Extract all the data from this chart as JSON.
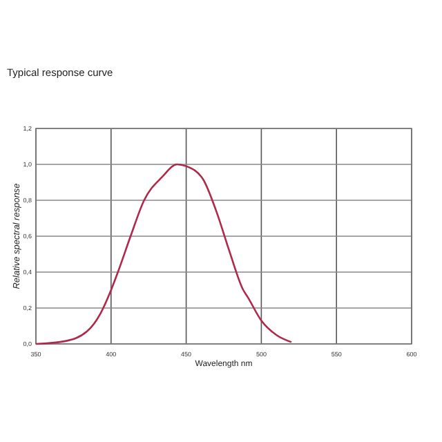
{
  "chart_data": {
    "type": "line",
    "title": "Typical response curve",
    "xlabel": "Wavelength nm",
    "ylabel": "Relative spectral response",
    "x": [
      350,
      369,
      384,
      393,
      400,
      405,
      413,
      422,
      434,
      444,
      450,
      461,
      470,
      479,
      488,
      491,
      500,
      510,
      520
    ],
    "series": [
      {
        "color": "#b0284a",
        "values": [
          0.0,
          0.015,
          0.07,
          0.17,
          0.3,
          0.41,
          0.6,
          0.8,
          0.93,
          1.0,
          0.99,
          0.92,
          0.74,
          0.51,
          0.3,
          0.26,
          0.13,
          0.05,
          0.01
        ]
      }
    ],
    "xlim": [
      350,
      600
    ],
    "xticks": [
      350,
      400,
      450,
      500,
      550,
      600
    ],
    "ylim": [
      0,
      1.2
    ],
    "yticks": [
      {
        "value": 0,
        "label": "0,0"
      },
      {
        "value": 0.2,
        "label": "0,2"
      },
      {
        "value": 0.4,
        "label": "0,4"
      },
      {
        "value": 0.6,
        "label": "0,6"
      },
      {
        "value": 0.8,
        "label": "0,8"
      },
      {
        "value": 1,
        "label": "1,0"
      },
      {
        "value": 1.2,
        "label": "1,2"
      }
    ],
    "grid": true,
    "marker": "none",
    "line_style": "solid"
  }
}
